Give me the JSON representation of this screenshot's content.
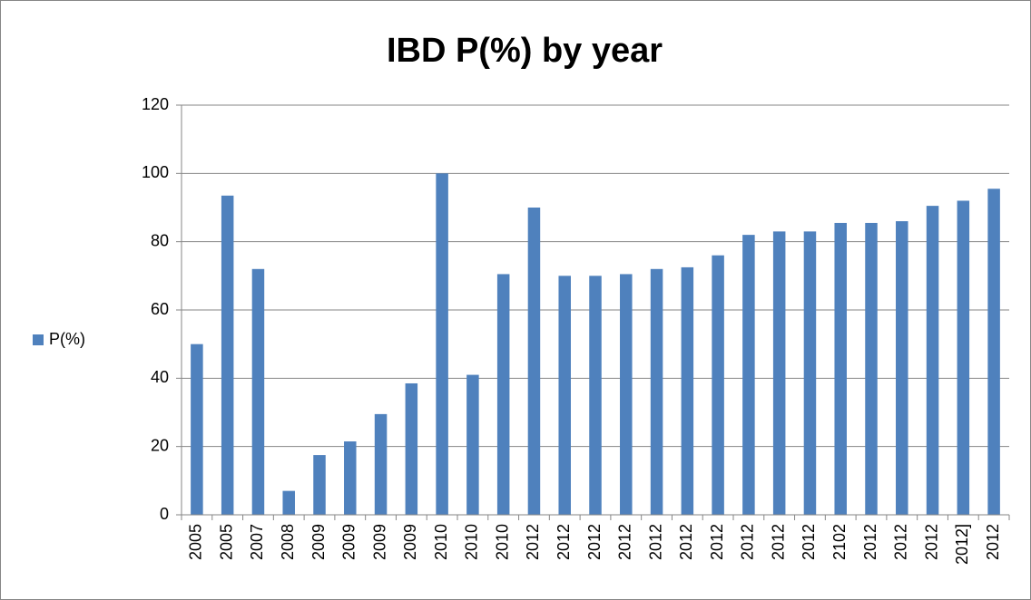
{
  "chart_data": {
    "type": "bar",
    "title": "IBD P(%) by year",
    "categories": [
      "2005",
      "2005",
      "2007",
      "2008",
      "2009",
      "2009",
      "2009",
      "2009",
      "2010",
      "2010",
      "2010",
      "2012",
      "2012",
      "2012",
      "2012",
      "2012",
      "2012",
      "2012",
      "2012",
      "2012",
      "2012",
      "2102",
      "2012",
      "2012",
      "2012",
      "2012]",
      "2012"
    ],
    "series": [
      {
        "name": "P(%)",
        "color": "#4f81bd",
        "values": [
          50,
          93.5,
          72,
          7,
          17.5,
          21.5,
          29.5,
          38.5,
          100,
          41,
          70.5,
          90,
          70,
          70,
          70.5,
          72,
          72.5,
          76,
          82,
          83,
          83,
          85.5,
          85.5,
          86,
          90.5,
          92,
          95.5
        ]
      }
    ],
    "ylim": [
      0,
      120
    ],
    "yticks": [
      0,
      20,
      40,
      60,
      80,
      100,
      120
    ],
    "grid": true,
    "legend": "left"
  }
}
